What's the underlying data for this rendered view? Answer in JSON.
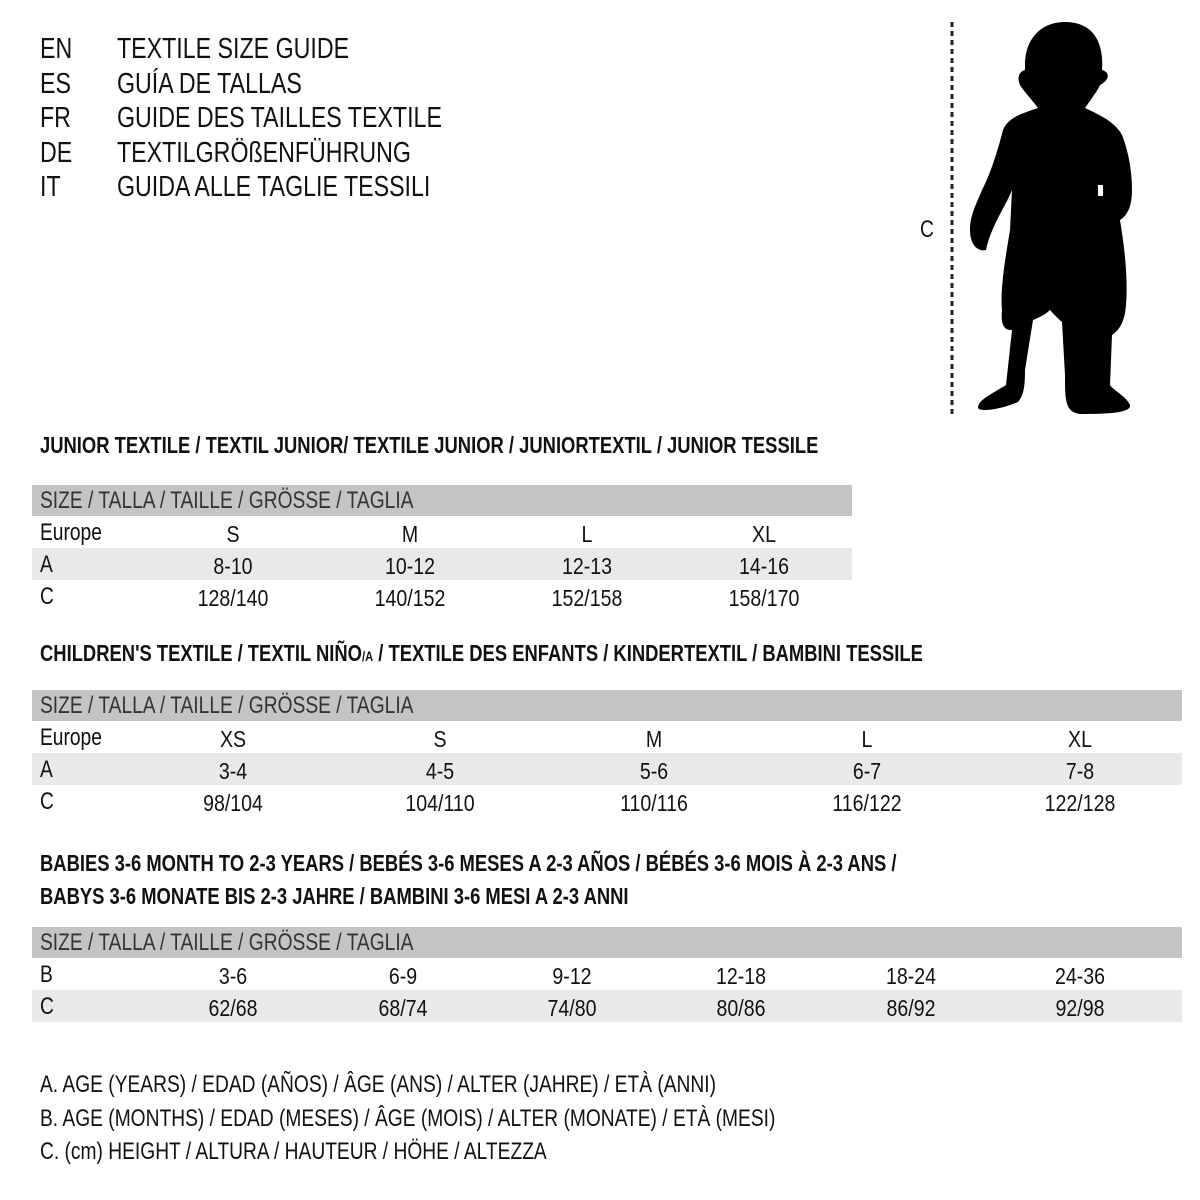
{
  "titles": [
    {
      "code": "EN",
      "text": "TEXTILE SIZE GUIDE"
    },
    {
      "code": "ES",
      "text": "GUÍA DE TALLAS"
    },
    {
      "code": "FR",
      "text": "GUIDE DES TAILLES TEXTILE"
    },
    {
      "code": "DE",
      "text": "TEXTILGRÖßENFÜHRUNG"
    },
    {
      "code": "IT",
      "text": "GUIDA ALLE TAGLIE TESSILI"
    }
  ],
  "figure": {
    "measure_label": "C"
  },
  "junior": {
    "title": "JUNIOR TEXTILE / TEXTIL JUNIOR/ TEXTILE JUNIOR / JUNIORTEXTIL / JUNIOR TESSILE",
    "header": "SIZE / TALLA / TAILLE / GRÖSSE / TAGLIA",
    "rows": [
      {
        "label": "Europe",
        "values": [
          "S",
          "M",
          "L",
          "XL"
        ]
      },
      {
        "label": "A",
        "values": [
          "8-10",
          "10-12",
          "12-13",
          "14-16"
        ]
      },
      {
        "label": "C",
        "values": [
          "128/140",
          "140/152",
          "152/158",
          "158/170"
        ]
      }
    ]
  },
  "children": {
    "title": "CHILDREN'S TEXTILE / TEXTIL NIÑO",
    "title_sub": "/A",
    "title_rest": " / TEXTILE DES ENFANTS / KINDERTEXTIL / BAMBINI TESSILE",
    "header": "SIZE / TALLA / TAILLE / GRÖSSE / TAGLIA",
    "rows": [
      {
        "label": "Europe",
        "values": [
          "XS",
          "S",
          "M",
          "L",
          "XL"
        ]
      },
      {
        "label": "A",
        "values": [
          "3-4",
          "4-5",
          "5-6",
          "6-7",
          "7-8"
        ]
      },
      {
        "label": "C",
        "values": [
          "98/104",
          "104/110",
          "110/116",
          "116/122",
          "122/128"
        ]
      }
    ]
  },
  "babies": {
    "title_line1": "BABIES 3-6 MONTH TO 2-3 YEARS / BEBÉS 3-6 MESES A 2-3 AÑOS / BÉBÉS 3-6 MOIS À 2-3 ANS /",
    "title_line2": "BABYS 3-6 MONATE BIS 2-3 JAHRE / BAMBINI 3-6 MESI A 2-3 ANNI",
    "header": "SIZE / TALLA / TAILLE / GRÖSSE / TAGLIA",
    "rows": [
      {
        "label": "B",
        "values": [
          "3-6",
          "6-9",
          "9-12",
          "12-18",
          "18-24",
          "24-36"
        ]
      },
      {
        "label": "C",
        "values": [
          "62/68",
          "68/74",
          "74/80",
          "80/86",
          "86/92",
          "92/98"
        ]
      }
    ]
  },
  "legend": [
    "A. AGE (YEARS) / EDAD (AÑOS) / ÂGE (ANS) / ALTER (JAHRE) / ETÀ (ANNI)",
    "B. AGE (MONTHS) / EDAD (MESES) / ÂGE (MOIS) / ALTER (MONATE) / ETÀ (MESI)",
    "C. (cm) HEIGHT / ALTURA / HAUTEUR / HÖHE / ALTEZZA"
  ]
}
